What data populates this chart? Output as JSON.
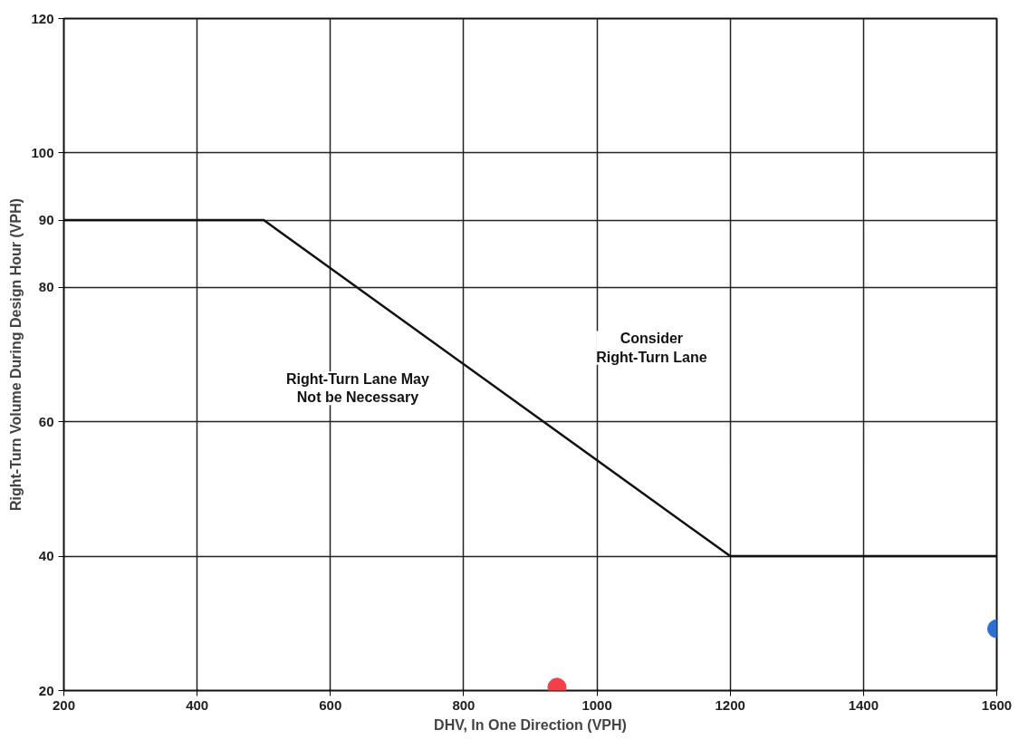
{
  "chart_data": {
    "type": "line",
    "xlabel": "DHV, In One Direction (VPH)",
    "ylabel": "Right-Turn Volume During Design Hour (VPH)",
    "xlim": [
      200,
      1600
    ],
    "ylim": [
      20,
      120
    ],
    "xticks": [
      200,
      400,
      600,
      800,
      1000,
      1200,
      1400,
      1600
    ],
    "yticks": [
      20,
      40,
      60,
      80,
      90,
      100,
      120
    ],
    "grid": true,
    "series": [
      {
        "color": "#111111",
        "x": [
          200,
          500,
          1200,
          1600
        ],
        "values": [
          90,
          90,
          40,
          40
        ]
      },
      {
        "type": "scatter",
        "color": "#f2404a",
        "x": [
          940
        ],
        "values": [
          20.5
        ]
      },
      {
        "type": "scatter",
        "color": "#2d6fd2",
        "x": [
          1600
        ],
        "values": [
          29.2
        ]
      }
    ],
    "annotations": [
      "Consider\nRight-Turn Lane",
      "Right-Turn Lane May\nNot be Necessary"
    ]
  }
}
